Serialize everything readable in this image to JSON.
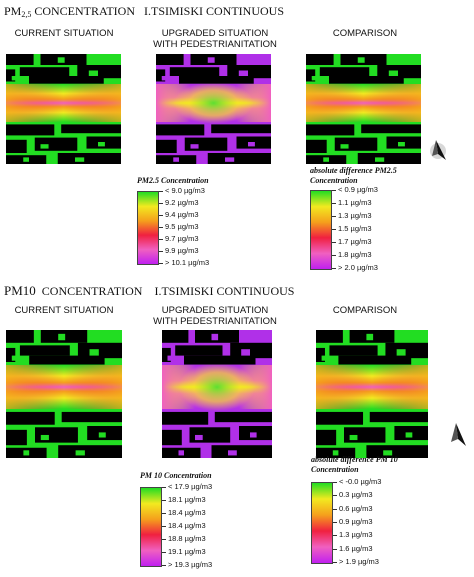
{
  "sections": [
    {
      "title_prefix": "PM",
      "title_sub": "2,5",
      "title_rest": " CONCENTRATION   I.TSIMISKI CONTINUOUS",
      "panels": [
        {
          "title_line1": "CURRENT SITUATION",
          "title_line2": "",
          "scenario": "current"
        },
        {
          "title_line1": "UPGRADED SITUATION",
          "title_line2": "WITH PEDESTRIANITATION",
          "scenario": "upgraded"
        },
        {
          "title_line1": "COMPARISON",
          "title_line2": "",
          "scenario": "comparison"
        }
      ],
      "legend_conc": {
        "title_line1": "PM2.5 Concentration",
        "title_line2": "",
        "labels": [
          "< 9.0 µg/m3",
          "9.2  µg/m3",
          "9.4  µg/m3",
          "9.5  µg/m3",
          "9.7  µg/m3",
          "9.9  µg/m3",
          "> 10.1 µg/m3"
        ]
      },
      "legend_diff": {
        "title_line1": "absolute difference PM2.5",
        "title_line2": "Concentration",
        "labels": [
          "< 0.9 µg/m3",
          "1.1  µg/m3",
          "1.3  µg/m3",
          "1.5  µg/m3",
          "1.7  µg/m3",
          "1.8  µg/m3",
          "> 2.0 µg/m3"
        ]
      }
    },
    {
      "title_prefix": "PM",
      "title_sub": "10",
      "title_rest": "  CONCENTRATION    I.TSIMISKI CONTINUOUS",
      "panels": [
        {
          "title_line1": "CURRENT SITUATION",
          "title_line2": "",
          "scenario": "current"
        },
        {
          "title_line1": "UPGRADED SITUATION",
          "title_line2": "WITH PEDESTRIANITATION",
          "scenario": "upgraded"
        },
        {
          "title_line1": "COMPARISON",
          "title_line2": "",
          "scenario": "comparison"
        }
      ],
      "legend_conc": {
        "title_line1": "PM 10 Concentration",
        "title_line2": "",
        "labels": [
          "< 17.9 µg/m3",
          "18.1  µg/m3",
          "18.4  µg/m3",
          "18.4  µg/m3",
          "18.8  µg/m3",
          "19.1  µg/m3",
          "> 19.3 µg/m3"
        ]
      },
      "legend_diff": {
        "title_line1": "absolute difference PM 10",
        "title_line2": "Concentration",
        "labels": [
          "< -0.0 µg/m3",
          "0.3  µg/m3",
          "0.6  µg/m3",
          "0.9  µg/m3",
          "1.3  µg/m3",
          "1.6  µg/m3",
          "> 1.9 µg/m3"
        ]
      }
    }
  ],
  "colors": {
    "building": "#000000",
    "green": "#22dd22",
    "yellow": "#f2ea20",
    "orange": "#f5a01c",
    "red": "#f02040",
    "pink": "#f060c0",
    "magenta": "#c020f0",
    "upgraded_low": "#b030e8"
  },
  "north_arrow_icon": "north-arrow-icon"
}
